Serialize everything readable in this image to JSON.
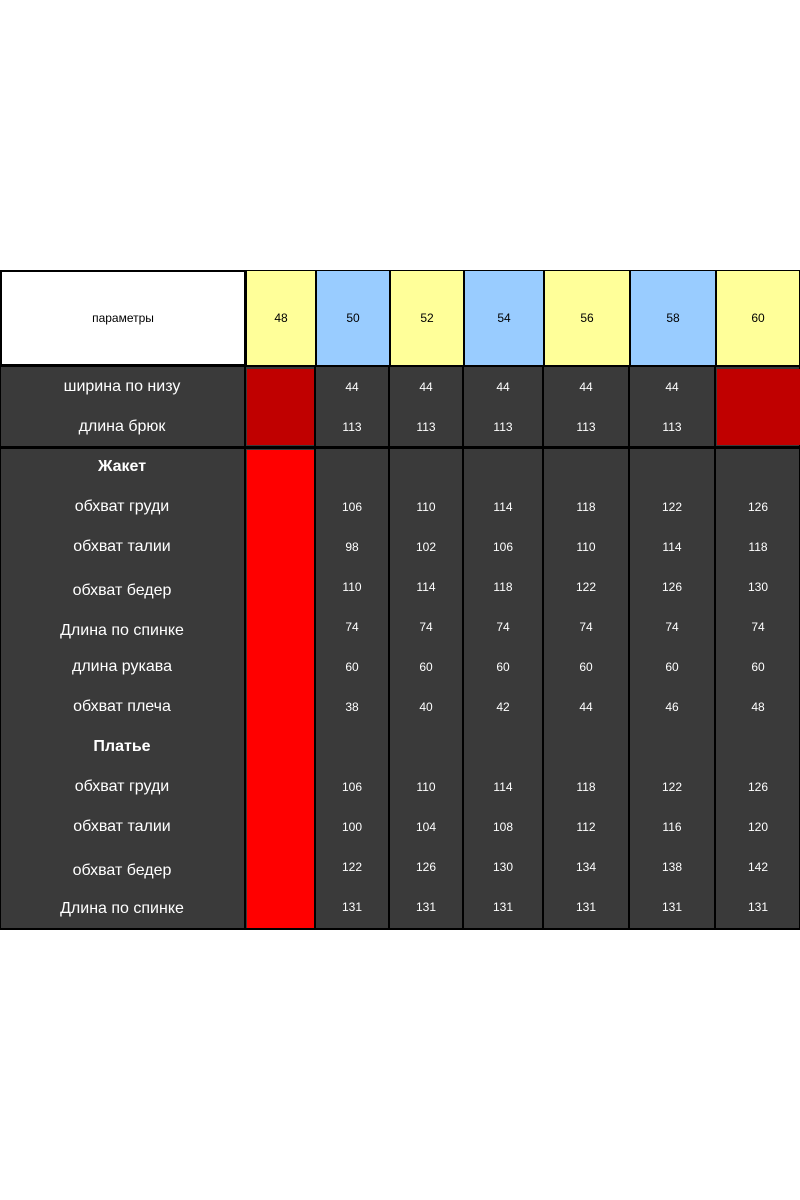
{
  "header": {
    "label": "параметры",
    "sizes": [
      "48",
      "50",
      "52",
      "54",
      "56",
      "58",
      "60"
    ]
  },
  "trousers": {
    "rows": [
      {
        "label": "ширина по низу",
        "values": [
          "44",
          "44",
          "44",
          "44",
          "44"
        ]
      },
      {
        "label": "длина брюк",
        "values": [
          "113",
          "113",
          "113",
          "113",
          "113"
        ]
      }
    ]
  },
  "jacket": {
    "title": "Жакет",
    "rows": [
      {
        "label": "обхват груди",
        "values": [
          "106",
          "110",
          "114",
          "118",
          "122",
          "126"
        ]
      },
      {
        "label": "обхват талии",
        "values": [
          "98",
          "102",
          "106",
          "110",
          "114",
          "118"
        ]
      },
      {
        "label": "обхват бедер",
        "values": [
          "110",
          "114",
          "118",
          "122",
          "126",
          "130"
        ]
      },
      {
        "label": "Длина по спинке",
        "values": [
          "74",
          "74",
          "74",
          "74",
          "74",
          "74"
        ]
      },
      {
        "label": "длина рукава",
        "values": [
          "60",
          "60",
          "60",
          "60",
          "60",
          "60"
        ]
      },
      {
        "label": "обхват плеча",
        "values": [
          "38",
          "40",
          "42",
          "44",
          "46",
          "48"
        ]
      }
    ]
  },
  "dress": {
    "title": "Платье",
    "rows": [
      {
        "label": "обхват груди",
        "values": [
          "106",
          "110",
          "114",
          "118",
          "122",
          "126"
        ]
      },
      {
        "label": "обхват талии",
        "values": [
          "100",
          "104",
          "108",
          "112",
          "116",
          "120"
        ]
      },
      {
        "label": "обхват бедер",
        "values": [
          "122",
          "126",
          "130",
          "134",
          "138",
          "142"
        ]
      },
      {
        "label": "Длина по спинке",
        "values": [
          "131",
          "131",
          "131",
          "131",
          "131",
          "131"
        ]
      }
    ]
  },
  "colors": {
    "header_yellow": "#ffff99",
    "header_blue": "#99ccff",
    "body_dark": "#3a3a3a",
    "unavailable_dark_red": "#c00000",
    "unavailable_bright_red": "#ff0000"
  }
}
